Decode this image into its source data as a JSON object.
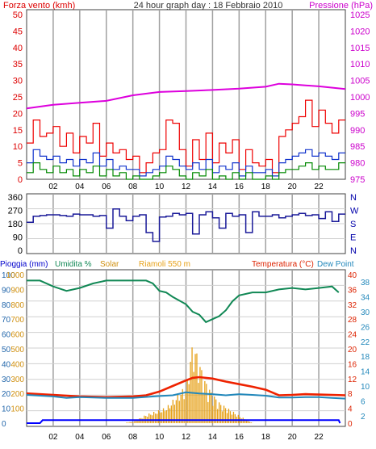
{
  "header": {
    "left_title": "Forza vento (kmh)",
    "center_title": "24 hour graph day : 18 Febbraio 2010",
    "right_title": "Pressione (hPa)"
  },
  "colors": {
    "wind_gust": "#ee0000",
    "wind_avg": "#1133cc",
    "wind_min": "#008800",
    "pressure": "#dd00dd",
    "direction": "#1a1a99",
    "humidity": "#118855",
    "solar": "#e6a118",
    "temperature": "#ee2200",
    "dew_point": "#2288bb",
    "rain": "#0000ff",
    "grid_vertical": "#a0a0a0",
    "grid_horizontal": "#d0d0d0",
    "frame": "#404040"
  },
  "x_tick_labels": [
    "02",
    "04",
    "06",
    "08",
    "10",
    "12",
    "14",
    "16",
    "18",
    "20",
    "22"
  ],
  "chart_data": [
    {
      "type": "line",
      "panel": "wind-pressure",
      "x_range": [
        0,
        24
      ],
      "y_left": {
        "ticks": [
          0,
          5,
          10,
          15,
          20,
          25,
          30,
          35,
          40,
          45,
          50
        ],
        "range": [
          0,
          50
        ]
      },
      "y_right": {
        "ticks": [
          975,
          980,
          985,
          990,
          995,
          1000,
          1005,
          1010,
          1015,
          1020,
          1025
        ],
        "range": [
          975,
          1025
        ]
      },
      "series": [
        {
          "name": "Forza vento (kmh)",
          "color_key": "wind_gust",
          "x": [
            0,
            0.5,
            1,
            1.5,
            2,
            2.5,
            3,
            3.5,
            4,
            4.5,
            5,
            5.5,
            6,
            6.5,
            7,
            7.5,
            8,
            8.5,
            9,
            9.5,
            10,
            10.5,
            11,
            11.5,
            12,
            12.5,
            13,
            13.5,
            14,
            14.5,
            15,
            15.5,
            16,
            16.5,
            17,
            17.5,
            18,
            18.5,
            19,
            19.5,
            20,
            20.5,
            21,
            21.5,
            22,
            22.5,
            23,
            23.5
          ],
          "y": [
            11,
            18,
            13,
            14,
            16,
            10,
            14,
            8,
            13,
            11,
            17,
            7,
            11,
            8,
            9,
            6,
            7,
            2,
            5,
            8,
            9,
            18,
            17,
            9,
            4,
            12,
            6,
            14,
            5,
            11,
            8,
            12,
            3,
            9,
            5,
            4,
            6,
            2,
            13,
            15,
            17,
            19,
            24,
            16,
            21,
            17,
            14,
            18
          ]
        },
        {
          "name": "Media",
          "color_key": "wind_avg",
          "x": [
            0,
            0.5,
            1,
            1.5,
            2,
            2.5,
            3,
            3.5,
            4,
            4.5,
            5,
            5.5,
            6,
            6.5,
            7,
            7.5,
            8,
            8.5,
            9,
            9.5,
            10,
            10.5,
            11,
            11.5,
            12,
            12.5,
            13,
            13.5,
            14,
            14.5,
            15,
            15.5,
            16,
            16.5,
            17,
            17.5,
            18,
            18.5,
            19,
            19.5,
            20,
            20.5,
            21,
            21.5,
            22,
            22.5,
            23,
            23.5
          ],
          "y": [
            5,
            9,
            7,
            6,
            7,
            5,
            6,
            4,
            6,
            5,
            8,
            4,
            6,
            3,
            4,
            3,
            3,
            1,
            2,
            3,
            4,
            7,
            6,
            4,
            3,
            5,
            3,
            6,
            2,
            4,
            3,
            5,
            1,
            4,
            2,
            2,
            3,
            1,
            5,
            6,
            7,
            8,
            9,
            7,
            8,
            7,
            6,
            8
          ]
        },
        {
          "name": "Minimo",
          "color_key": "wind_min",
          "x": [
            0,
            0.5,
            1,
            1.5,
            2,
            2.5,
            3,
            3.5,
            4,
            4.5,
            5,
            5.5,
            6,
            6.5,
            7,
            7.5,
            8,
            8.5,
            9,
            9.5,
            10,
            10.5,
            11,
            11.5,
            12,
            12.5,
            13,
            13.5,
            14,
            14.5,
            15,
            15.5,
            16,
            16.5,
            17,
            17.5,
            18,
            18.5,
            19,
            19.5,
            20,
            20.5,
            21,
            21.5,
            22,
            22.5,
            23,
            23.5
          ],
          "y": [
            2,
            5,
            3,
            2,
            4,
            2,
            3,
            1,
            3,
            2,
            4,
            1,
            3,
            1,
            2,
            0,
            1,
            0,
            0,
            1,
            2,
            4,
            3,
            1,
            0,
            2,
            1,
            3,
            0,
            1,
            0,
            2,
            0,
            2,
            0,
            0,
            1,
            0,
            2,
            3,
            3,
            4,
            5,
            3,
            4,
            3,
            3,
            5
          ]
        },
        {
          "name": "Pressione (hPa)",
          "color_key": "pressure",
          "x": [
            0,
            2,
            4,
            6,
            8,
            10,
            12,
            14,
            16,
            18,
            19,
            20,
            22,
            24
          ],
          "y": [
            996.5,
            997.6,
            998.2,
            998.8,
            1000.5,
            1001.5,
            1001.8,
            1002.1,
            1002.5,
            1003.1,
            1004.0,
            1003.8,
            1003.2,
            1002.4
          ],
          "axis": "right"
        }
      ]
    },
    {
      "type": "line",
      "panel": "wind-direction",
      "x_range": [
        0,
        24
      ],
      "y_left": {
        "ticks": [
          0,
          90,
          180,
          270,
          360
        ],
        "range": [
          0,
          360
        ]
      },
      "y_right": {
        "ticks": [
          "N",
          "W",
          "S",
          "E",
          "N"
        ]
      },
      "series": [
        {
          "name": "Direzione",
          "color_key": "direction",
          "x": [
            0,
            0.5,
            1,
            1.5,
            2,
            2.5,
            3,
            3.5,
            4,
            4.5,
            5,
            5.5,
            6,
            6.5,
            7,
            7.5,
            8,
            8.5,
            9,
            9.5,
            10,
            10.5,
            11,
            11.5,
            12,
            12.5,
            13,
            13.5,
            14,
            14.5,
            15,
            15.5,
            16,
            16.5,
            17,
            17.5,
            18,
            18.5,
            19,
            19.5,
            20,
            20.5,
            21,
            21.5,
            22,
            22.5,
            23,
            23.5
          ],
          "y": [
            190,
            230,
            235,
            240,
            240,
            235,
            230,
            245,
            240,
            240,
            230,
            235,
            150,
            280,
            230,
            200,
            230,
            240,
            120,
            60,
            225,
            230,
            250,
            240,
            250,
            110,
            240,
            260,
            220,
            150,
            250,
            230,
            240,
            120,
            260,
            230,
            230,
            240,
            220,
            230,
            240,
            250,
            235,
            240,
            215,
            260,
            195,
            245
          ]
        }
      ]
    },
    {
      "type": "line",
      "panel": "rain-humidity-temperature",
      "x_range": [
        0,
        24
      ],
      "y_left_rain": {
        "ticks": [
          0,
          10,
          20,
          30,
          40,
          50,
          60,
          70,
          80,
          90,
          100
        ],
        "range": [
          0,
          100
        ]
      },
      "y_left_solar": {
        "ticks": [
          0,
          100,
          200,
          300,
          400,
          500,
          600,
          700,
          800,
          900,
          1000
        ]
      },
      "y_right_temp": {
        "ticks": [
          0,
          4,
          8,
          12,
          16,
          20,
          24,
          28,
          32,
          36,
          40
        ],
        "range": [
          0,
          40
        ]
      },
      "y_right_dew": {
        "ticks": [
          0,
          2,
          4,
          6,
          8,
          10,
          12,
          14,
          16,
          18,
          20,
          22,
          24,
          26,
          28,
          30,
          32,
          34,
          36,
          38,
          40
        ]
      },
      "series": [
        {
          "name": "Umidita %",
          "color_key": "humidity",
          "x": [
            0,
            1,
            2,
            3,
            4,
            5,
            6,
            7,
            8,
            9,
            9.5,
            10,
            10.5,
            11,
            12,
            12.5,
            13,
            13.5,
            14,
            14.5,
            15,
            15.5,
            16,
            17,
            18,
            19,
            20,
            21,
            22,
            23,
            23.5
          ],
          "y": [
            96,
            96,
            92,
            89,
            91,
            94,
            96,
            96,
            96,
            96,
            94,
            89,
            88,
            85,
            80,
            75,
            73,
            68,
            70,
            72,
            76,
            82,
            86,
            88,
            88,
            90,
            91,
            90,
            91,
            92,
            88
          ],
          "axis": "left_rain"
        },
        {
          "name": "Solar",
          "color_key": "solar",
          "x": [
            0,
            7,
            8,
            9,
            10,
            10.5,
            11,
            11.5,
            12,
            12.2,
            12.5,
            12.8,
            13,
            13.3,
            13.6,
            14,
            14.5,
            15,
            15.5,
            16,
            17,
            24
          ],
          "y": [
            0,
            0,
            10,
            60,
            90,
            110,
            160,
            220,
            250,
            420,
            560,
            480,
            420,
            320,
            260,
            200,
            140,
            110,
            80,
            50,
            0,
            0
          ],
          "axis": "left_solar"
        },
        {
          "name": "Riamoli 550 m",
          "color_key": "rain",
          "x": [
            0,
            1,
            1.2,
            23.5,
            23.6
          ],
          "y": [
            0,
            0,
            2,
            2,
            0
          ],
          "axis": "left_rain"
        },
        {
          "name": "Temperatura (°C)",
          "color_key": "temperature",
          "x": [
            0,
            2,
            4,
            6,
            8,
            9,
            10,
            11,
            12,
            12.5,
            13,
            14,
            15,
            16,
            17,
            18,
            19,
            20,
            21,
            22,
            23,
            24
          ],
          "y": [
            8.0,
            7.6,
            7.2,
            7.0,
            7.2,
            7.5,
            8.5,
            10.0,
            11.5,
            12.2,
            12.4,
            12.0,
            11.2,
            10.5,
            9.8,
            9.0,
            7.5,
            7.6,
            7.8,
            7.7,
            7.6,
            7.5
          ],
          "axis": "right_temp"
        },
        {
          "name": "Dew Point",
          "color_key": "dew_point",
          "x": [
            0,
            2,
            3,
            4,
            6,
            8,
            10,
            11,
            12,
            13,
            14,
            15,
            16,
            17,
            18,
            19,
            20,
            21,
            22,
            23,
            24
          ],
          "y": [
            7.6,
            7.2,
            6.8,
            7.0,
            6.8,
            6.8,
            7.3,
            7.5,
            8.3,
            8.0,
            7.8,
            7.5,
            7.8,
            7.6,
            7.4,
            6.9,
            6.9,
            7.0,
            7.0,
            6.8,
            6.6
          ],
          "axis": "right_temp"
        }
      ],
      "legend": [
        "Pioggia (mm)",
        "Umidita %",
        "Solar",
        "Riamoli 550 m",
        "Temperatura (°C)",
        "Dew Point"
      ]
    }
  ]
}
